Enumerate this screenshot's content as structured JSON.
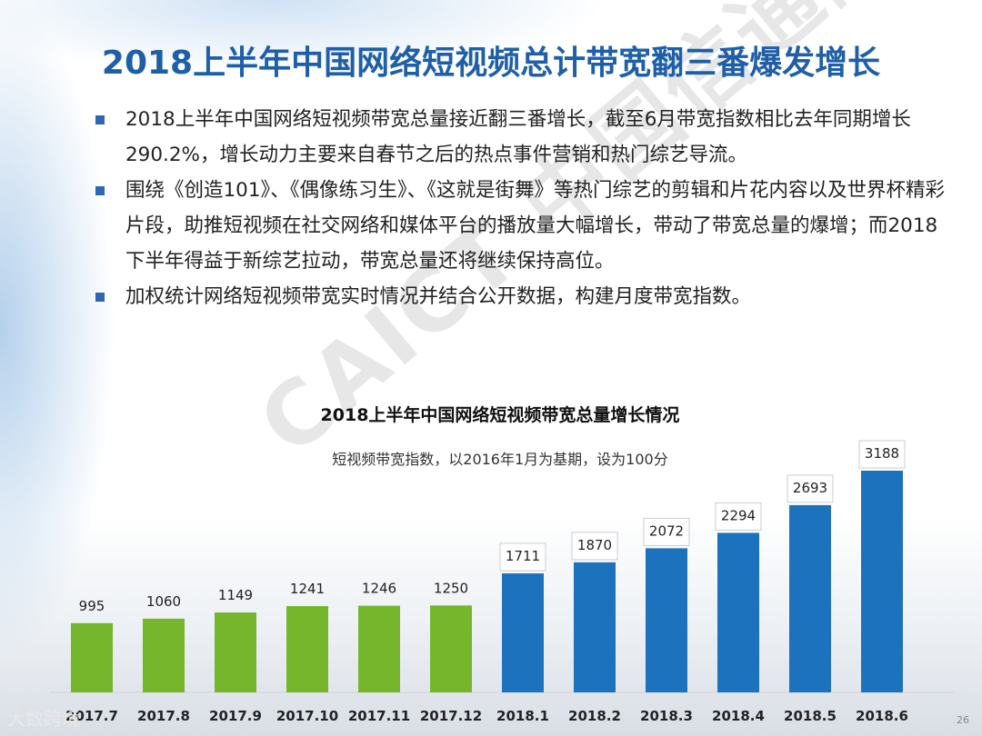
{
  "slide": {
    "title": "2018上半年中国网络短视频总计带宽翻三番爆发增长",
    "bullets": [
      "2018上半年中国网络短视频带宽总量接近翻三番增长，截至6月带宽指数相比去年同期增长290.2%，增长动力主要来自春节之后的热点事件营销和热门综艺导流。",
      "围绕《创造101》、《偶像练习生》、《这就是街舞》等热门综艺的剪辑和片花内容以及世界杯精彩片段，助推短视频在社交网络和媒体平台的播放量大幅增长，带动了带宽总量的爆增；而2018下半年得益于新综艺拉动，带宽总量还将继续保持高位。",
      "加权统计网络短视频带宽实时情况并结合公开数据，构建月度带宽指数。"
    ],
    "watermark": "CAICT 中国信通院",
    "logo_text": "大数跨境",
    "page_number": "26"
  },
  "chart_data": {
    "type": "bar",
    "title": "2018上半年中国网络短视频带宽总量增长情况",
    "subtitle": "短视频带宽指数，以2016年1月为基期，设为100分",
    "categories": [
      "2017.7",
      "2017.8",
      "2017.9",
      "2017.10",
      "2017.11",
      "2017.12",
      "2018.1",
      "2018.2",
      "2018.3",
      "2018.4",
      "2018.5",
      "2018.6"
    ],
    "values": [
      995,
      1060,
      1149,
      1241,
      1246,
      1250,
      1711,
      1870,
      2072,
      2294,
      2693,
      3188
    ],
    "ylim": [
      0,
      3188
    ],
    "colors": {
      "2017": "#76b62d",
      "2018": "#1d72bd"
    },
    "data_label_style_2018": "boxed",
    "grid": false,
    "legend": "none"
  }
}
